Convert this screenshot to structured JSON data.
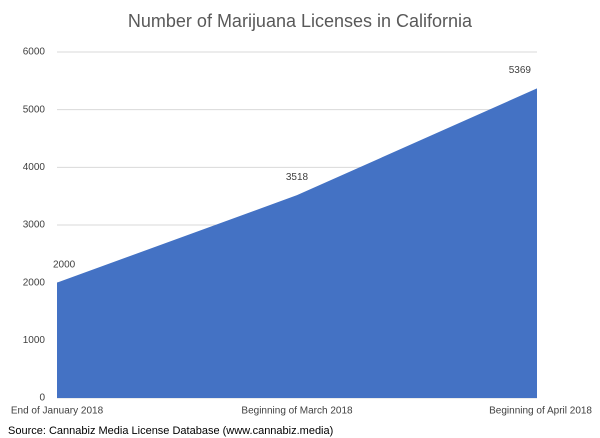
{
  "chart_data": {
    "type": "area",
    "title": "Number of Marijuana Licenses in California",
    "categories": [
      "End of January 2018",
      "Beginning of March 2018",
      "Beginning of April 2018"
    ],
    "values": [
      2000,
      3518,
      5369
    ],
    "color": "#4472c4",
    "ylim": [
      0,
      6000
    ],
    "yticks": [
      0,
      1000,
      2000,
      3000,
      4000,
      5000,
      6000
    ],
    "grid": true,
    "source": "Source: Cannabiz Media License Database (www.cannabiz.media)"
  }
}
